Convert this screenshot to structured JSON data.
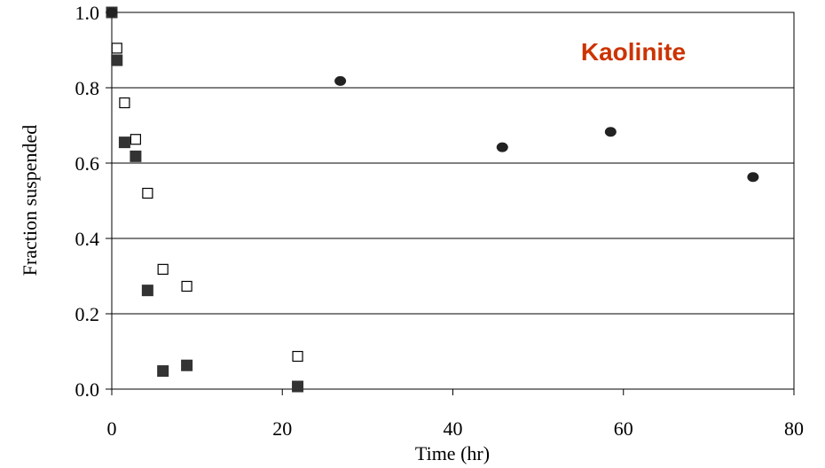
{
  "chart_data": {
    "type": "scatter",
    "xlabel": "Time (hr)",
    "ylabel": "Fraction suspended",
    "xlim": [
      0,
      80
    ],
    "ylim": [
      0,
      1.0
    ],
    "x_ticks": [
      0,
      20,
      40,
      60,
      80
    ],
    "x_tick_labels": [
      "0",
      "20",
      "40",
      "60",
      "80"
    ],
    "y_ticks": [
      0,
      0.2,
      0.4,
      0.6,
      0.8,
      1.0
    ],
    "y_tick_labels": [
      "0.0",
      "0.2",
      "0.4",
      "0.6",
      "0.8",
      "1.0"
    ],
    "grid_y": true,
    "annotation": {
      "text": "Kaolinite",
      "color": "#cc3300",
      "placement": "top-right"
    },
    "series": [
      {
        "marker": "open-square",
        "color": "#000000",
        "points": [
          [
            0,
            1.0
          ],
          [
            0.6,
            0.905
          ],
          [
            1.5,
            0.76
          ],
          [
            2.8,
            0.663
          ],
          [
            4.2,
            0.52
          ],
          [
            6.0,
            0.318
          ],
          [
            8.8,
            0.273
          ],
          [
            21.8,
            0.087
          ]
        ]
      },
      {
        "marker": "filled-square",
        "color": "#333333",
        "points": [
          [
            0,
            1.0
          ],
          [
            0.6,
            0.873
          ],
          [
            1.5,
            0.655
          ],
          [
            2.8,
            0.618
          ],
          [
            4.2,
            0.262
          ],
          [
            6.0,
            0.048
          ],
          [
            8.8,
            0.063
          ],
          [
            21.8,
            0.007
          ]
        ]
      },
      {
        "marker": "filled-circle",
        "color": "#222222",
        "points": [
          [
            0,
            1.0
          ],
          [
            26.8,
            0.818
          ],
          [
            45.8,
            0.642
          ],
          [
            58.5,
            0.683
          ],
          [
            75.2,
            0.563
          ]
        ]
      }
    ]
  }
}
